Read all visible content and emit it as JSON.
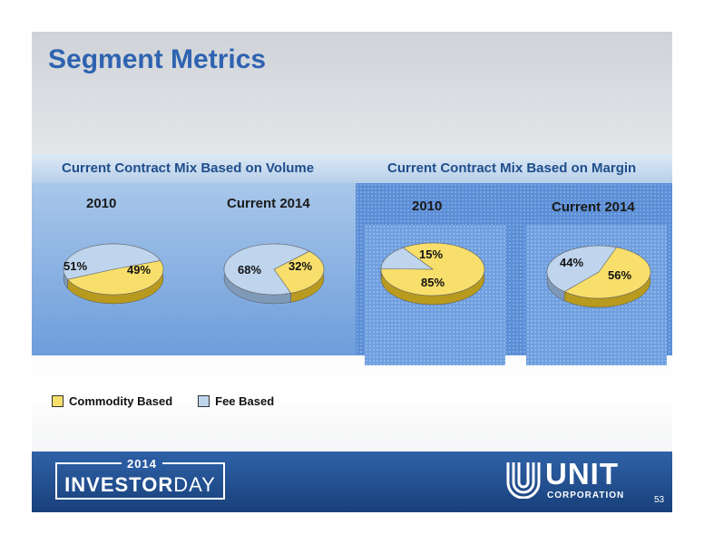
{
  "slide": {
    "title": "Segment Metrics",
    "page_number": "53"
  },
  "sections": {
    "volume_label": "Current Contract Mix Based on Volume",
    "margin_label": "Current Contract Mix Based on Margin"
  },
  "legend": {
    "commodity_label": "Commodity Based",
    "fee_label": "Fee Based"
  },
  "footer": {
    "event_year": "2014",
    "event_word_1": "INVESTOR",
    "event_word_2": "DAY",
    "company_name": "UNIT",
    "company_sub": "CORPORATION"
  },
  "colors": {
    "commodity": "#f8df6b",
    "fee": "#bfd5ee",
    "title": "#2e63b0"
  },
  "chart_data": [
    {
      "type": "pie",
      "group": "Current Contract Mix Based on Volume",
      "title": "2010",
      "series": [
        {
          "name": "Commodity Based",
          "value": 49
        },
        {
          "name": "Fee Based",
          "value": 51
        }
      ],
      "labels": [
        "49%",
        "51%"
      ]
    },
    {
      "type": "pie",
      "group": "Current Contract Mix Based on Volume",
      "title": "Current 2014",
      "series": [
        {
          "name": "Commodity Based",
          "value": 32
        },
        {
          "name": "Fee Based",
          "value": 68
        }
      ],
      "labels": [
        "32%",
        "68%"
      ]
    },
    {
      "type": "pie",
      "group": "Current Contract Mix Based on Margin",
      "title": "2010",
      "series": [
        {
          "name": "Commodity Based",
          "value": 85
        },
        {
          "name": "Fee Based",
          "value": 15
        }
      ],
      "labels": [
        "85%",
        "15%"
      ]
    },
    {
      "type": "pie",
      "group": "Current Contract Mix Based on Margin",
      "title": "Current 2014",
      "series": [
        {
          "name": "Commodity Based",
          "value": 56
        },
        {
          "name": "Fee Based",
          "value": 44
        }
      ],
      "labels": [
        "56%",
        "44%"
      ]
    }
  ]
}
